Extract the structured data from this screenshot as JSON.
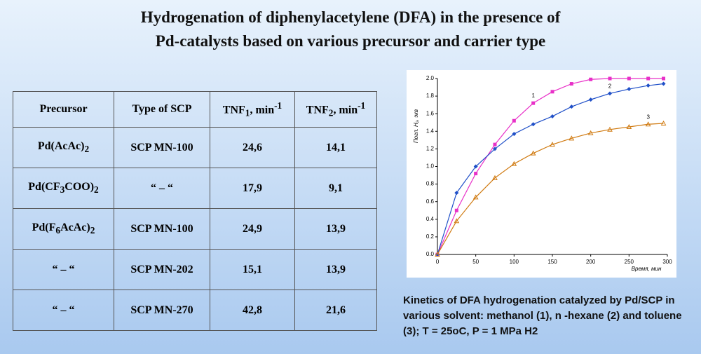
{
  "title": [
    "Hydrogenation of diphenylacetylene (DFA) in the presence of",
    "Pd-catalysts based on various precursor and carrier type"
  ],
  "table": {
    "header": [
      [
        {
          "text": "Precursor"
        }
      ],
      [
        {
          "text": "Type of SCP"
        }
      ],
      [
        {
          "text": "TNF"
        },
        {
          "text": "1",
          "style": "sub"
        },
        {
          "text": ", min"
        },
        {
          "text": "-1",
          "style": "sup"
        }
      ],
      [
        {
          "text": "TNF"
        },
        {
          "text": "2",
          "style": "sub"
        },
        {
          "text": ", min"
        },
        {
          "text": "-1",
          "style": "sup"
        }
      ]
    ],
    "rows": [
      [
        [
          {
            "text": "Pd(AcAc)"
          },
          {
            "text": "2",
            "style": "sub"
          }
        ],
        [
          {
            "text": "SCP MN-100"
          }
        ],
        [
          {
            "text": "24,6"
          }
        ],
        [
          {
            "text": "14,1"
          }
        ]
      ],
      [
        [
          {
            "text": "Pd(CF"
          },
          {
            "text": "3",
            "style": "sub"
          },
          {
            "text": "COO)"
          },
          {
            "text": "2",
            "style": "sub"
          }
        ],
        [
          {
            "text": "“ – “"
          }
        ],
        [
          {
            "text": "17,9"
          }
        ],
        [
          {
            "text": "9,1"
          }
        ]
      ],
      [
        [
          {
            "text": "Pd(F"
          },
          {
            "text": "6",
            "style": "sub"
          },
          {
            "text": "AcAc)"
          },
          {
            "text": "2",
            "style": "sub"
          }
        ],
        [
          {
            "text": "SCP MN-100"
          }
        ],
        [
          {
            "text": "24,9"
          }
        ],
        [
          {
            "text": "13,9"
          }
        ]
      ],
      [
        [
          {
            "text": "“ – “"
          }
        ],
        [
          {
            "text": "SCP MN-202"
          }
        ],
        [
          {
            "text": "15,1"
          }
        ],
        [
          {
            "text": "13,9"
          }
        ]
      ],
      [
        [
          {
            "text": "“ – “"
          }
        ],
        [
          {
            "text": "SCP MN-270"
          }
        ],
        [
          {
            "text": "42,8"
          }
        ],
        [
          {
            "text": "21,6"
          }
        ]
      ]
    ]
  },
  "chart_data": {
    "type": "line",
    "xlabel": "Время, мин",
    "ylabel": "Погл. H₂, экв",
    "x": [
      0,
      25,
      50,
      75,
      100,
      125,
      150,
      175,
      200,
      225,
      250,
      275,
      295
    ],
    "series": [
      {
        "name": "1",
        "color": "#e830c8",
        "marker": "square",
        "values": [
          0,
          0.5,
          0.92,
          1.25,
          1.52,
          1.72,
          1.85,
          1.94,
          1.99,
          2.0,
          2.0,
          2.0,
          2.0
        ]
      },
      {
        "name": "2",
        "color": "#2050c8",
        "marker": "diamond",
        "values": [
          0,
          0.7,
          1.0,
          1.2,
          1.37,
          1.48,
          1.57,
          1.68,
          1.76,
          1.83,
          1.88,
          1.92,
          1.94
        ]
      },
      {
        "name": "3",
        "color": "#d07a10",
        "marker": "triangle",
        "values": [
          0,
          0.38,
          0.65,
          0.87,
          1.03,
          1.15,
          1.25,
          1.32,
          1.38,
          1.42,
          1.45,
          1.48,
          1.49
        ]
      }
    ],
    "xlim": [
      0,
      300
    ],
    "xticks": [
      0,
      50,
      100,
      150,
      200,
      250,
      300
    ],
    "ylim": [
      0,
      2.0
    ],
    "yticks": [
      {
        "value": 0,
        "label": "0.0"
      },
      {
        "value": 0.2,
        "label": "0.2"
      },
      {
        "value": 0.4,
        "label": "0.4"
      },
      {
        "value": 0.6,
        "label": "0.6"
      },
      {
        "value": 0.8,
        "label": "0.8"
      },
      {
        "value": 1.0,
        "label": "1.0"
      },
      {
        "value": 1.2,
        "label": "1.2"
      },
      {
        "value": 1.4,
        "label": "1.4"
      },
      {
        "value": 1.6,
        "label": "1.6"
      },
      {
        "value": 1.8,
        "label": "1.8"
      },
      {
        "value": 2.0,
        "label": "2.0"
      }
    ]
  },
  "caption": "Kinetics of DFA hydrogenation catalyzed by Pd/SCP in various solvent: methanol (1), n -hexane (2) and toluene (3); T = 25oC, P = 1 MPa H2"
}
